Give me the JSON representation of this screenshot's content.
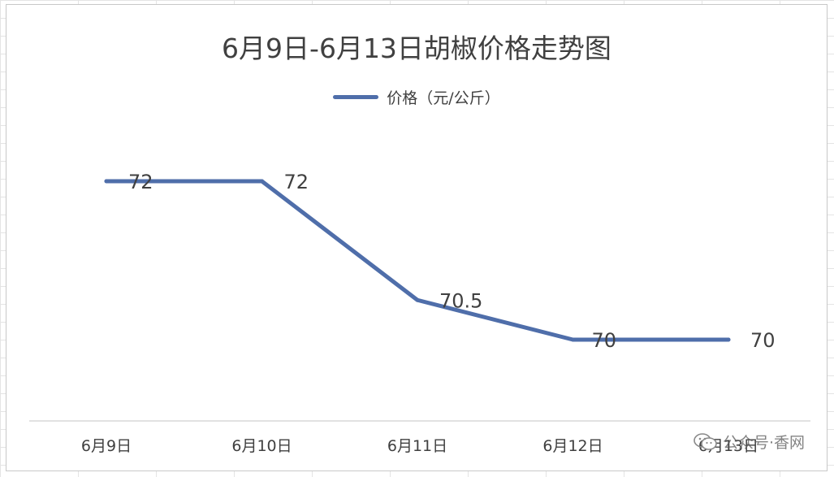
{
  "chart_data": {
    "type": "line",
    "title": "6月9日-6月13日胡椒价格走势图",
    "categories": [
      "6月9日",
      "6月10日",
      "6月11日",
      "6月12日",
      "6月13日"
    ],
    "series": [
      {
        "name": "价格（元/公斤）",
        "values": [
          72,
          72,
          70.5,
          70,
          70
        ],
        "labels": [
          "72",
          "72",
          "70.5",
          "70",
          "70"
        ],
        "color": "#4f6eaa"
      }
    ],
    "xlabel": "",
    "ylabel": "",
    "ylim": [
      69,
      73
    ],
    "axis_line_color": "#d9d9d9",
    "grid": false,
    "legend_position": "top"
  },
  "watermark": {
    "text": "公众号·香网",
    "icon": "wechat-icon"
  }
}
